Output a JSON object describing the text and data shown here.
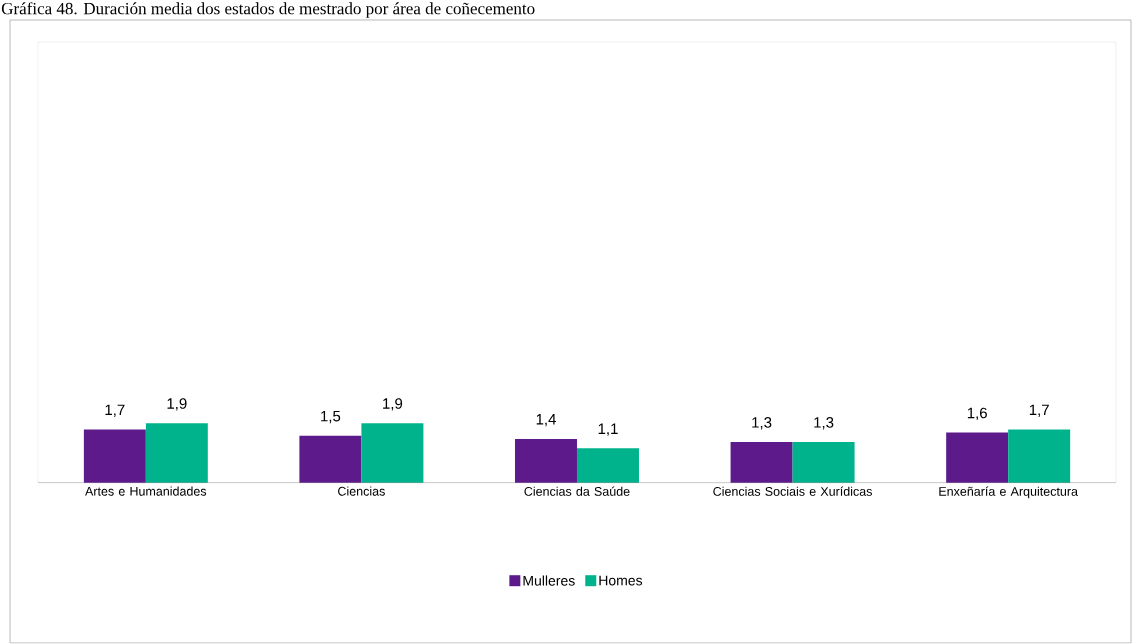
{
  "chart_data": {
    "type": "bar",
    "title": "Gráfica 48. Duración media dos estados de mestrado por área de coñecemento",
    "categories": [
      "Artes e Humanidades",
      "Ciencias",
      "Ciencias da Saúde",
      "Ciencias Sociais e Xurídicas",
      "Enxeñaría e Arquitectura"
    ],
    "series": [
      {
        "name": "Mulleres",
        "color": "#5c1a8b",
        "values": [
          1.7,
          1.5,
          1.4,
          1.3,
          1.6
        ],
        "value_labels": [
          "1,7",
          "1,5",
          "1,4",
          "1,3",
          "1,6"
        ]
      },
      {
        "name": "Homes",
        "color": "#00b38c",
        "values": [
          1.9,
          1.9,
          1.1,
          1.3,
          1.7
        ],
        "value_labels": [
          "1,9",
          "1,9",
          "1,1",
          "1,3",
          "1,7"
        ]
      }
    ],
    "ylim": [
      0,
      14
    ],
    "tick_labels": "x",
    "legend": "bottom",
    "grid": false
  }
}
